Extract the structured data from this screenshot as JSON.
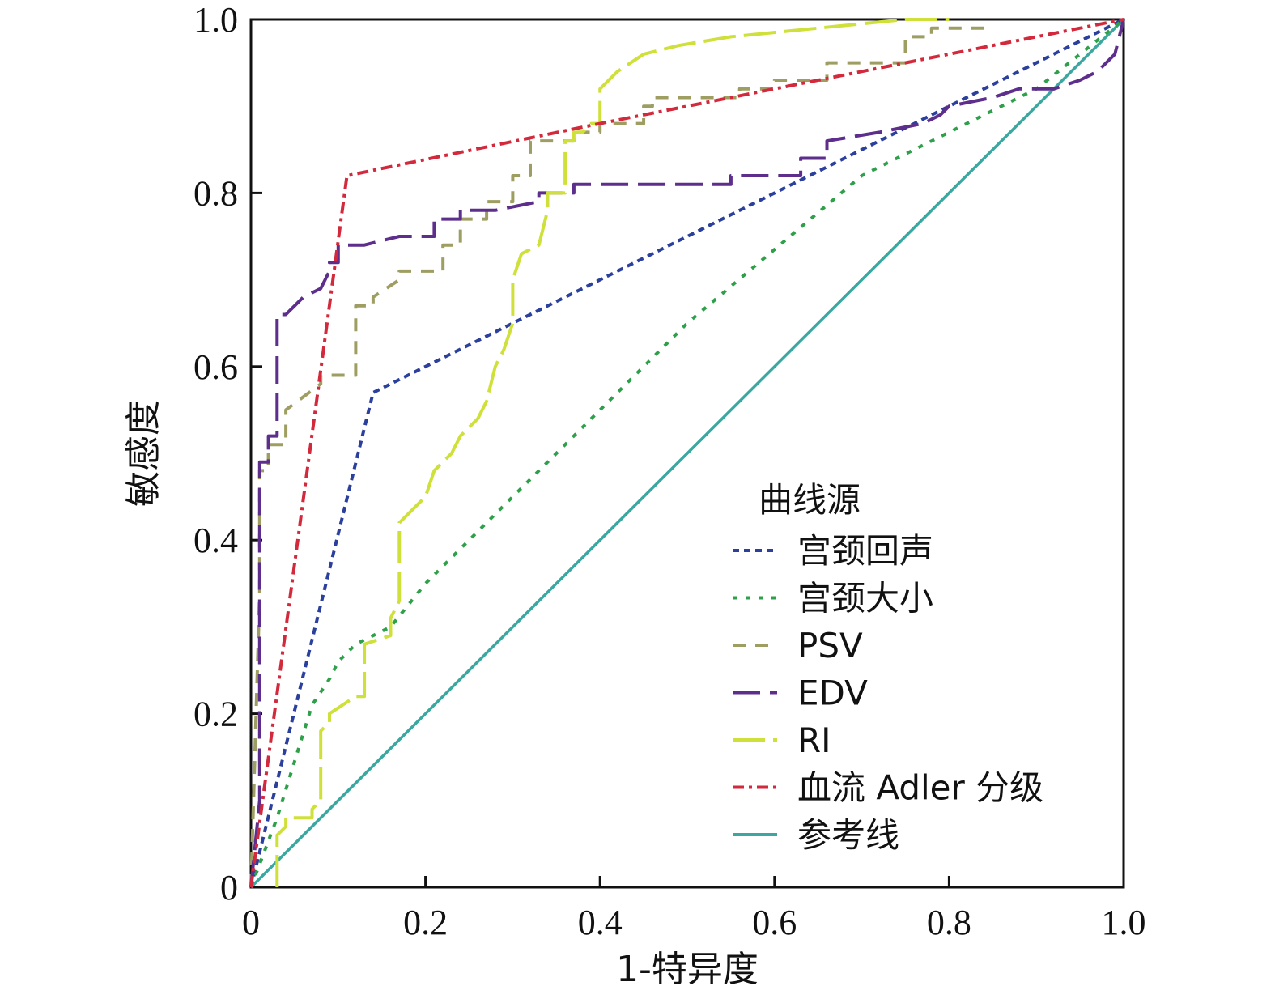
{
  "chart_data": {
    "type": "line",
    "title": "",
    "xlabel": "1-特异度",
    "ylabel": "敏感度",
    "xlim": [
      0,
      1.0
    ],
    "ylim": [
      0,
      1.0
    ],
    "x_ticks": [
      "0",
      "0.2",
      "0.4",
      "0.6",
      "0.8",
      "1.0"
    ],
    "y_ticks": [
      "0",
      "0.2",
      "0.4",
      "0.6",
      "0.8",
      "1.0"
    ],
    "grid": false,
    "legend": {
      "title": "曲线源",
      "position": "lower-right",
      "entries": [
        "宫颈回声",
        "宫颈大小",
        "PSV",
        "EDV",
        "RI",
        "血流 Adler 分级",
        "参考线"
      ]
    },
    "series": [
      {
        "name": "宫颈回声",
        "color": "#2b3f9c",
        "dash": "8,6",
        "x": [
          0,
          0.14,
          1.0
        ],
        "y": [
          0,
          0.57,
          1.0
        ]
      },
      {
        "name": "宫颈大小",
        "color": "#2fa04a",
        "dash": "6,10",
        "x": [
          0,
          0.03,
          0.07,
          0.09,
          0.1,
          0.12,
          0.16,
          0.2,
          0.3,
          0.5,
          0.7,
          0.9,
          1.0
        ],
        "y": [
          0,
          0.08,
          0.21,
          0.24,
          0.26,
          0.28,
          0.3,
          0.35,
          0.45,
          0.65,
          0.82,
          0.92,
          1.0
        ]
      },
      {
        "name": "PSV",
        "color": "#9e9e62",
        "dash": "16,12",
        "x": [
          0,
          0.01,
          0.01,
          0.02,
          0.02,
          0.04,
          0.04,
          0.08,
          0.08,
          0.12,
          0.12,
          0.14,
          0.14,
          0.17,
          0.17,
          0.22,
          0.22,
          0.24,
          0.24,
          0.27,
          0.27,
          0.3,
          0.3,
          0.32,
          0.32,
          0.37,
          0.37,
          0.4,
          0.4,
          0.45,
          0.45,
          0.46,
          0.46,
          0.56,
          0.56,
          0.6,
          0.6,
          0.66,
          0.66,
          0.75,
          0.75,
          0.78,
          0.78,
          0.84
        ],
        "y": [
          0,
          0.34,
          0.48,
          0.48,
          0.51,
          0.51,
          0.55,
          0.58,
          0.59,
          0.59,
          0.67,
          0.67,
          0.68,
          0.7,
          0.71,
          0.71,
          0.74,
          0.74,
          0.77,
          0.77,
          0.79,
          0.79,
          0.82,
          0.82,
          0.86,
          0.86,
          0.87,
          0.87,
          0.88,
          0.88,
          0.9,
          0.9,
          0.91,
          0.91,
          0.92,
          0.92,
          0.93,
          0.93,
          0.95,
          0.95,
          0.98,
          0.98,
          0.99,
          0.99
        ]
      },
      {
        "name": "EDV",
        "color": "#5e2e8c",
        "dash": "34,12",
        "x": [
          0,
          0.01,
          0.01,
          0.02,
          0.02,
          0.03,
          0.03,
          0.04,
          0.05,
          0.06,
          0.08,
          0.09,
          0.09,
          0.1,
          0.1,
          0.13,
          0.17,
          0.21,
          0.21,
          0.24,
          0.24,
          0.28,
          0.33,
          0.33,
          0.37,
          0.37,
          0.42,
          0.55,
          0.55,
          0.63,
          0.63,
          0.66,
          0.66,
          0.72,
          0.77,
          0.79,
          0.8,
          0.85,
          0.88,
          0.92,
          0.95,
          0.97,
          0.99,
          1.0
        ],
        "y": [
          0,
          0.1,
          0.49,
          0.49,
          0.52,
          0.52,
          0.66,
          0.66,
          0.67,
          0.68,
          0.69,
          0.71,
          0.72,
          0.72,
          0.74,
          0.74,
          0.75,
          0.75,
          0.77,
          0.77,
          0.78,
          0.78,
          0.79,
          0.8,
          0.8,
          0.81,
          0.81,
          0.81,
          0.82,
          0.82,
          0.84,
          0.84,
          0.86,
          0.87,
          0.88,
          0.89,
          0.9,
          0.91,
          0.92,
          0.92,
          0.93,
          0.94,
          0.96,
          1.0
        ]
      },
      {
        "name": "RI",
        "color": "#cfe03a",
        "dash": "40,10",
        "x": [
          0.03,
          0.03,
          0.04,
          0.04,
          0.07,
          0.07,
          0.08,
          0.08,
          0.09,
          0.09,
          0.12,
          0.13,
          0.13,
          0.16,
          0.16,
          0.17,
          0.17,
          0.19,
          0.2,
          0.21,
          0.23,
          0.24,
          0.26,
          0.27,
          0.28,
          0.29,
          0.3,
          0.3,
          0.31,
          0.33,
          0.34,
          0.34,
          0.36,
          0.36,
          0.37,
          0.37,
          0.38,
          0.39,
          0.4,
          0.4,
          0.42,
          0.45,
          0.49,
          0.55,
          0.65,
          0.75,
          0.8
        ],
        "y": [
          0,
          0.06,
          0.07,
          0.08,
          0.08,
          0.09,
          0.1,
          0.18,
          0.19,
          0.2,
          0.22,
          0.22,
          0.28,
          0.29,
          0.31,
          0.33,
          0.42,
          0.44,
          0.45,
          0.48,
          0.5,
          0.52,
          0.54,
          0.56,
          0.6,
          0.62,
          0.65,
          0.7,
          0.73,
          0.74,
          0.78,
          0.8,
          0.8,
          0.86,
          0.86,
          0.87,
          0.87,
          0.88,
          0.88,
          0.92,
          0.94,
          0.96,
          0.97,
          0.98,
          0.99,
          1.0,
          1.0
        ]
      },
      {
        "name": "血流 Adler 分级",
        "color": "#d22a3c",
        "dash": "14,6,4,6",
        "x": [
          0,
          0.11,
          0.4,
          1.0
        ],
        "y": [
          0,
          0.82,
          0.88,
          1.0
        ]
      },
      {
        "name": "参考线",
        "color": "#3aa8a0",
        "dash": "",
        "x": [
          0,
          1.0
        ],
        "y": [
          0,
          1.0
        ]
      }
    ]
  }
}
